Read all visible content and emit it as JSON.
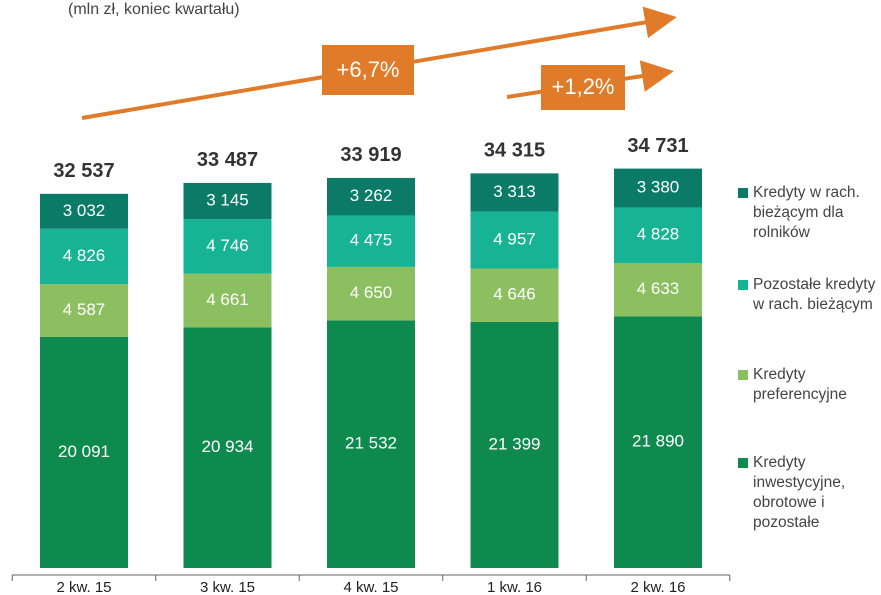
{
  "chart_data": {
    "type": "stacked_bar",
    "subtitle": "(mln zł, koniec kwartału)",
    "categories": [
      "2 kw. 15",
      "3 kw. 15",
      "4 kw. 15",
      "1 kw. 16",
      "2 kw. 16"
    ],
    "series": [
      {
        "name": "Kredyty inwestycyjne, obrotowe i pozostałe",
        "color": "#0f8a4f",
        "values": [
          20091,
          20934,
          21532,
          21399,
          21890
        ],
        "value_labels": [
          "20 091",
          "20 934",
          "21 532",
          "21 399",
          "21 890"
        ]
      },
      {
        "name": "Kredyty preferencyjne",
        "color": "#8cbf5f",
        "values": [
          4587,
          4661,
          4650,
          4646,
          4633
        ],
        "value_labels": [
          "4 587",
          "4 661",
          "4 650",
          "4 646",
          "4 633"
        ]
      },
      {
        "name": "Pozostałe kredyty w rach. bieżącym",
        "color": "#17b395",
        "values": [
          4826,
          4746,
          4475,
          4957,
          4828
        ],
        "value_labels": [
          "4 826",
          "4 746",
          "4 475",
          "4 957",
          "4 828"
        ]
      },
      {
        "name": "Kredyty w rach. bieżącym dla rolników",
        "color": "#0b7b68",
        "values": [
          3032,
          3145,
          3262,
          3313,
          3380
        ],
        "value_labels": [
          "3 032",
          "3 145",
          "3 262",
          "3 313",
          "3 380"
        ]
      }
    ],
    "totals": {
      "values": [
        32537,
        33487,
        33919,
        34315,
        34731
      ],
      "value_labels": [
        "32 537",
        "33 487",
        "33 919",
        "34 315",
        "34 731"
      ]
    },
    "annotations": [
      "+6,7%",
      "+1,2%"
    ]
  }
}
